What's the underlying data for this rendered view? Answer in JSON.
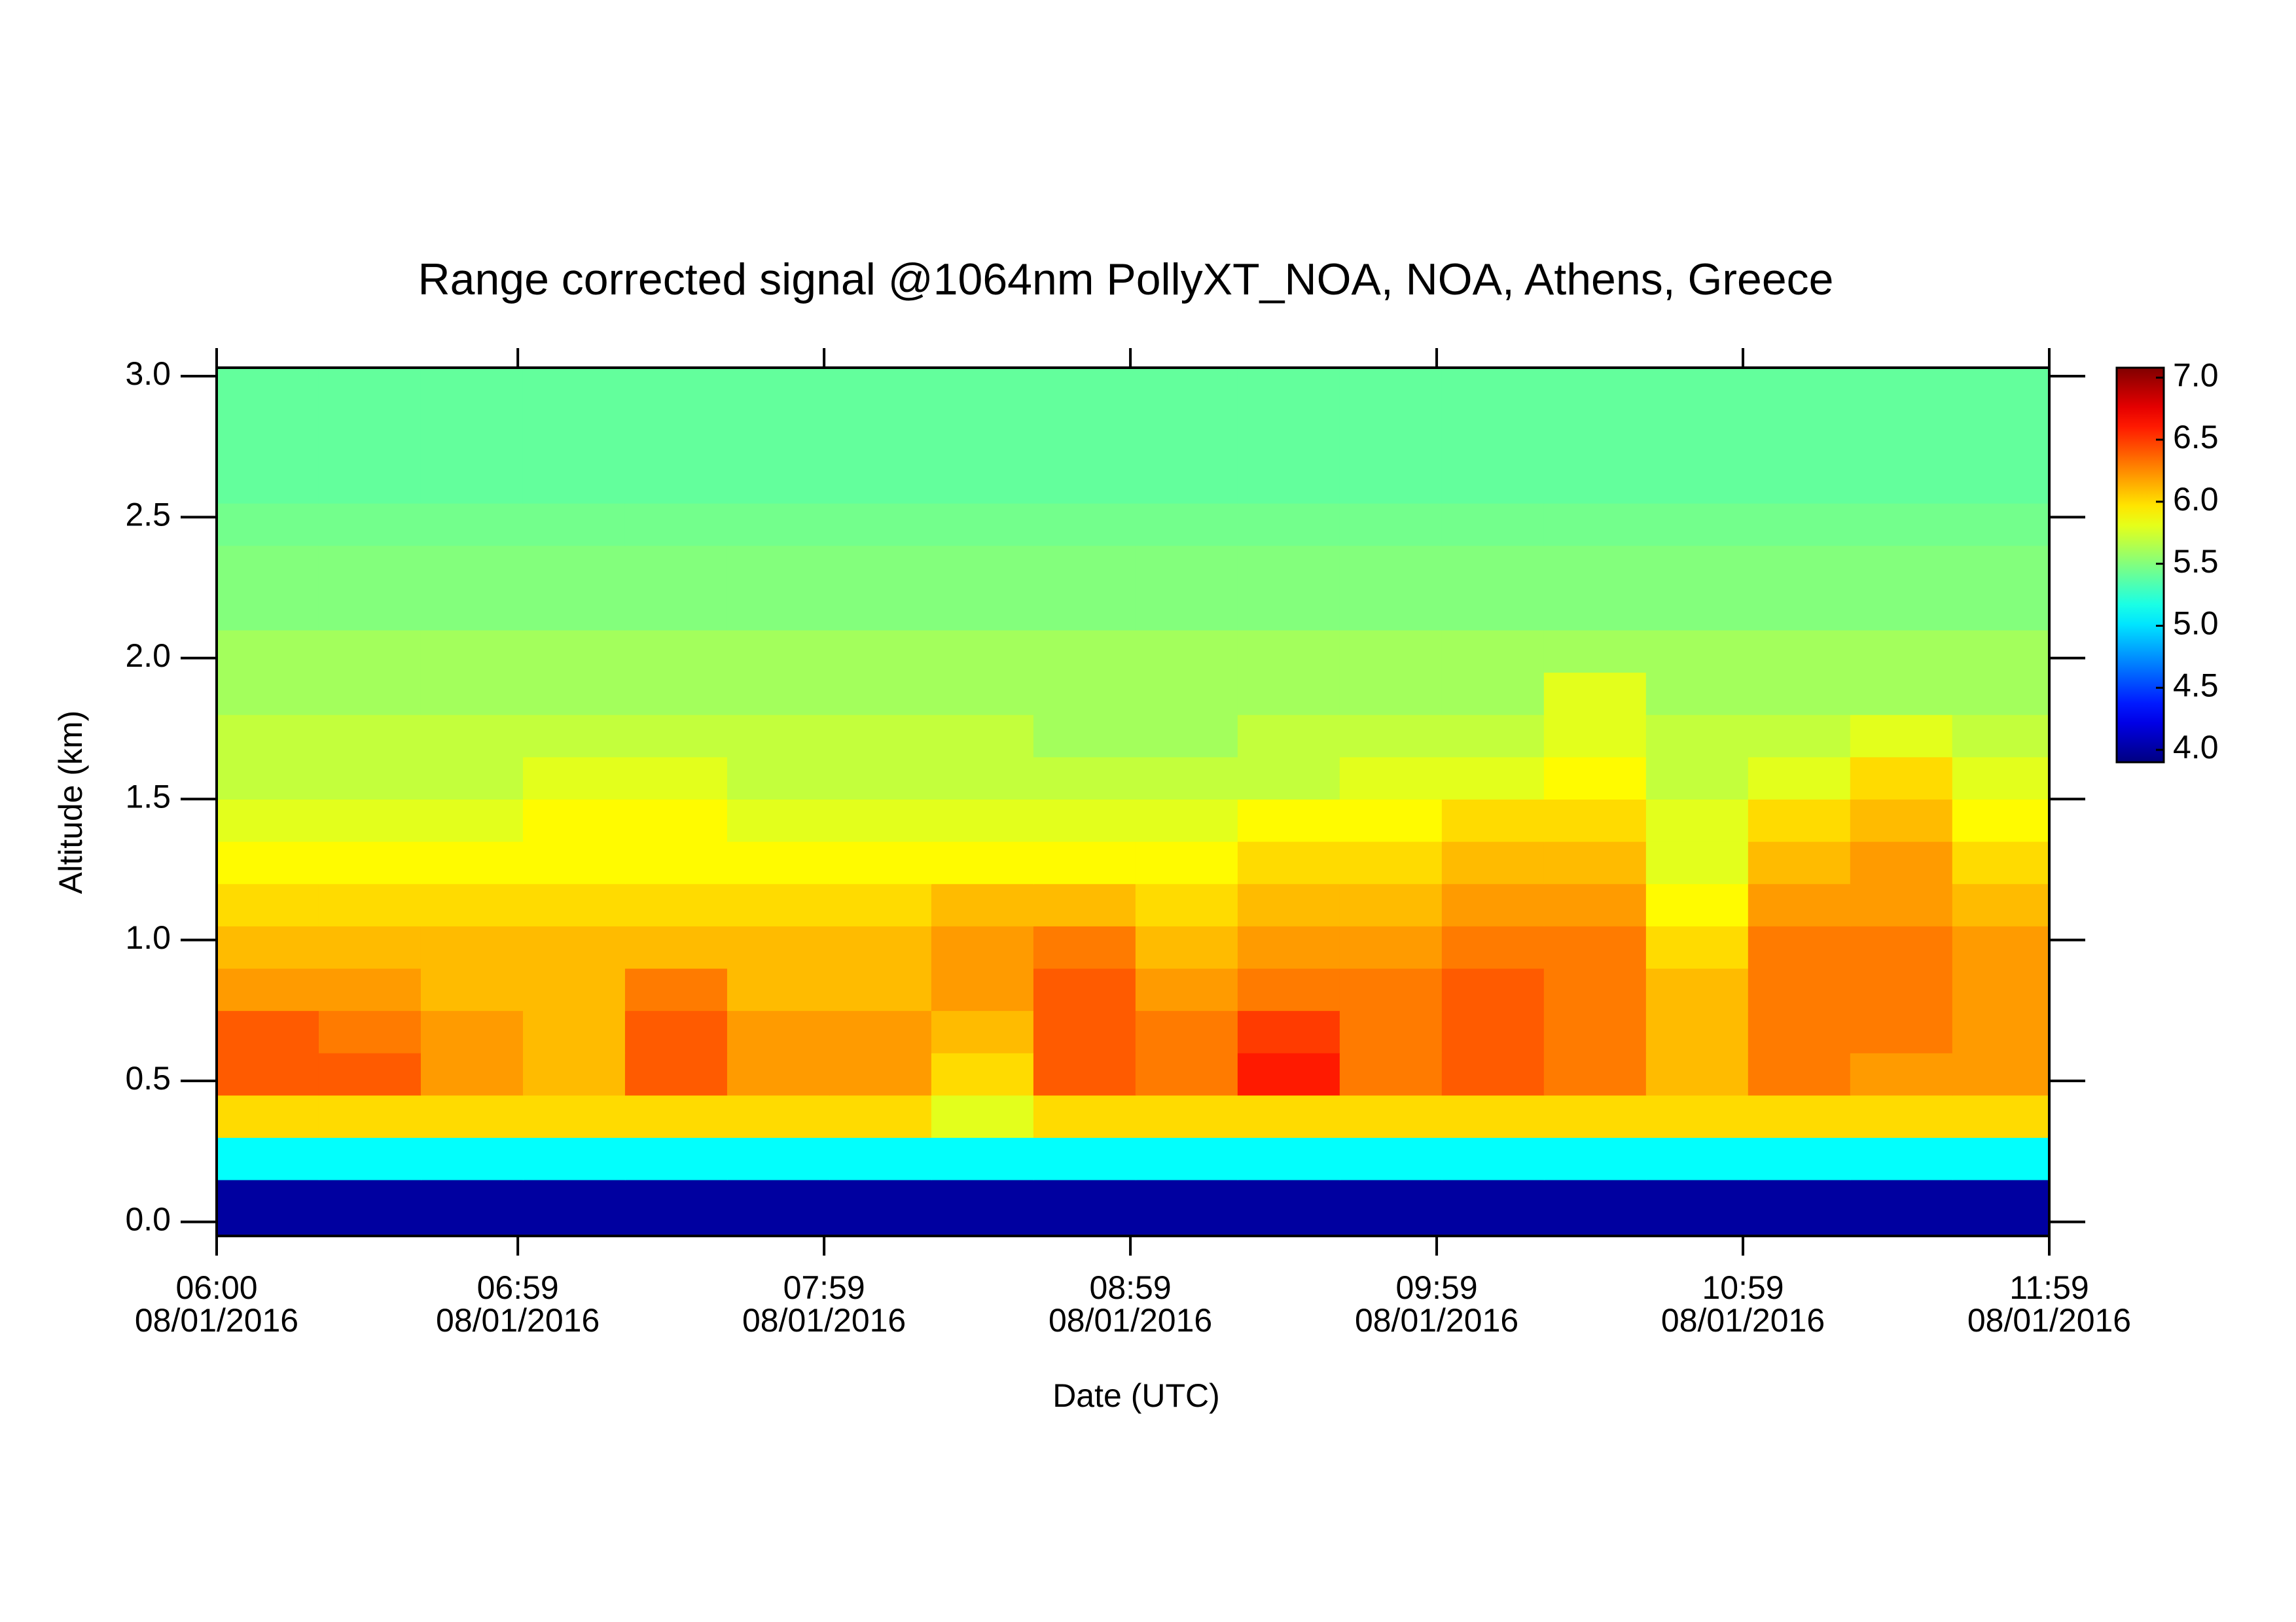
{
  "chart_data": {
    "type": "heatmap",
    "title": "Range corrected signal @1064nm  PollyXT_NOA, NOA, Athens, Greece",
    "x_label": "Date (UTC)",
    "y_label": "Altitude (km)",
    "colormap": "jet",
    "xlim": [
      "06:00",
      "11:59"
    ],
    "xticks": [
      {
        "value": "06:00",
        "label": "06:00",
        "date": "08/01/2016"
      },
      {
        "value": "06:59",
        "label": "06:59",
        "date": "08/01/2016"
      },
      {
        "value": "07:59",
        "label": "07:59",
        "date": "08/01/2016"
      },
      {
        "value": "08:59",
        "label": "08:59",
        "date": "08/01/2016"
      },
      {
        "value": "09:59",
        "label": "09:59",
        "date": "08/01/2016"
      },
      {
        "value": "10:59",
        "label": "10:59",
        "date": "08/01/2016"
      },
      {
        "value": "11:59",
        "label": "11:59",
        "date": "08/01/2016"
      }
    ],
    "ylim": [
      -0.05,
      3.03
    ],
    "yticks": [
      {
        "value": 0,
        "label": "0.0"
      },
      0.5,
      {
        "value": 1,
        "label": "1.0"
      },
      1.5,
      {
        "value": 2,
        "label": "2.0"
      },
      2.5,
      {
        "value": 3,
        "label": "3.0"
      }
    ],
    "zlim": [
      3.9,
      7.08
    ],
    "zticks": [
      {
        "value": 4,
        "label": "4.0"
      },
      4.5,
      {
        "value": 5,
        "label": "5.0"
      },
      5.5,
      {
        "value": 6,
        "label": "6.0"
      },
      6.5,
      {
        "value": 7,
        "label": "7.0"
      }
    ],
    "xbins": [
      "06:00",
      "06:20",
      "06:40",
      "07:00",
      "07:20",
      "07:40",
      "08:00",
      "08:20",
      "08:40",
      "09:00",
      "09:20",
      "09:40",
      "10:00",
      "10:20",
      "10:40",
      "11:00",
      "11:20",
      "11:40",
      "11:59"
    ],
    "ybins": [
      -0.05,
      0.15,
      0.3,
      0.45,
      0.6,
      0.75,
      0.9,
      1.05,
      1.2,
      1.35,
      1.5,
      1.65,
      1.8,
      1.95,
      2.1,
      2.25,
      2.4,
      2.55,
      2.7,
      2.85,
      3.03
    ],
    "z": [
      [
        4.0,
        4.0,
        4.0,
        4.0,
        4.0,
        4.0,
        4.0,
        4.0,
        4.0,
        4.0,
        4.0,
        4.0,
        4.0,
        4.0,
        4.0,
        4.0,
        4.0,
        4.0
      ],
      [
        5.1,
        5.1,
        5.1,
        5.1,
        5.1,
        5.1,
        5.1,
        5.1,
        5.1,
        5.1,
        5.1,
        5.1,
        5.1,
        5.1,
        5.1,
        5.1,
        5.1,
        5.1
      ],
      [
        6.0,
        6.0,
        6.0,
        6.0,
        6.0,
        6.0,
        6.0,
        5.8,
        6.0,
        6.0,
        6.0,
        6.0,
        6.0,
        6.0,
        6.0,
        6.0,
        6.0,
        6.0
      ],
      [
        6.4,
        6.4,
        6.2,
        6.1,
        6.4,
        6.2,
        6.2,
        6.0,
        6.4,
        6.3,
        6.6,
        6.3,
        6.4,
        6.3,
        6.1,
        6.3,
        6.2,
        6.2
      ],
      [
        6.4,
        6.3,
        6.2,
        6.1,
        6.4,
        6.2,
        6.2,
        6.1,
        6.4,
        6.3,
        6.5,
        6.3,
        6.4,
        6.3,
        6.1,
        6.3,
        6.3,
        6.2
      ],
      [
        6.2,
        6.2,
        6.1,
        6.1,
        6.3,
        6.1,
        6.1,
        6.2,
        6.4,
        6.2,
        6.3,
        6.3,
        6.4,
        6.3,
        6.1,
        6.3,
        6.3,
        6.2
      ],
      [
        6.1,
        6.1,
        6.1,
        6.1,
        6.1,
        6.1,
        6.1,
        6.2,
        6.3,
        6.1,
        6.2,
        6.2,
        6.3,
        6.3,
        6.0,
        6.3,
        6.3,
        6.2
      ],
      [
        6.0,
        6.0,
        6.0,
        6.0,
        6.0,
        6.0,
        6.0,
        6.1,
        6.1,
        6.0,
        6.1,
        6.1,
        6.2,
        6.2,
        5.9,
        6.2,
        6.2,
        6.1
      ],
      [
        5.9,
        5.9,
        5.9,
        5.9,
        5.9,
        5.9,
        5.9,
        5.9,
        5.9,
        5.9,
        6.0,
        6.0,
        6.1,
        6.1,
        5.8,
        6.1,
        6.2,
        6.0
      ],
      [
        5.8,
        5.8,
        5.8,
        5.9,
        5.9,
        5.8,
        5.8,
        5.8,
        5.8,
        5.8,
        5.9,
        5.9,
        6.0,
        6.0,
        5.8,
        6.0,
        6.1,
        5.9
      ],
      [
        5.7,
        5.7,
        5.7,
        5.8,
        5.8,
        5.7,
        5.7,
        5.7,
        5.7,
        5.7,
        5.7,
        5.8,
        5.8,
        5.9,
        5.7,
        5.8,
        6.0,
        5.8
      ],
      [
        5.7,
        5.7,
        5.7,
        5.7,
        5.7,
        5.7,
        5.7,
        5.7,
        5.6,
        5.6,
        5.7,
        5.7,
        5.7,
        5.8,
        5.7,
        5.7,
        5.8,
        5.7
      ],
      [
        5.6,
        5.6,
        5.6,
        5.6,
        5.6,
        5.6,
        5.6,
        5.6,
        5.6,
        5.6,
        5.6,
        5.6,
        5.6,
        5.8,
        5.6,
        5.6,
        5.6,
        5.6
      ],
      [
        5.6,
        5.6,
        5.6,
        5.6,
        5.6,
        5.6,
        5.6,
        5.6,
        5.6,
        5.6,
        5.6,
        5.6,
        5.6,
        5.6,
        5.6,
        5.6,
        5.6,
        5.6
      ],
      [
        5.5,
        5.5,
        5.5,
        5.5,
        5.5,
        5.5,
        5.5,
        5.5,
        5.5,
        5.5,
        5.5,
        5.5,
        5.5,
        5.5,
        5.5,
        5.5,
        5.5,
        5.5
      ],
      [
        5.5,
        5.5,
        5.5,
        5.5,
        5.5,
        5.5,
        5.5,
        5.5,
        5.5,
        5.5,
        5.5,
        5.5,
        5.5,
        5.5,
        5.5,
        5.5,
        5.5,
        5.5
      ],
      [
        5.45,
        5.45,
        5.45,
        5.45,
        5.45,
        5.45,
        5.45,
        5.45,
        5.45,
        5.45,
        5.45,
        5.45,
        5.45,
        5.45,
        5.45,
        5.45,
        5.45,
        5.45
      ],
      [
        5.4,
        5.4,
        5.4,
        5.4,
        5.4,
        5.4,
        5.4,
        5.4,
        5.4,
        5.4,
        5.4,
        5.4,
        5.4,
        5.4,
        5.4,
        5.4,
        5.4,
        5.4
      ],
      [
        5.4,
        5.4,
        5.4,
        5.4,
        5.4,
        5.4,
        5.4,
        5.4,
        5.4,
        5.4,
        5.4,
        5.4,
        5.4,
        5.4,
        5.4,
        5.4,
        5.4,
        5.4
      ],
      [
        5.4,
        5.4,
        5.4,
        5.4,
        5.4,
        5.4,
        5.4,
        5.4,
        5.4,
        5.4,
        5.4,
        5.4,
        5.4,
        5.4,
        5.4,
        5.4,
        5.4,
        5.4
      ]
    ]
  }
}
